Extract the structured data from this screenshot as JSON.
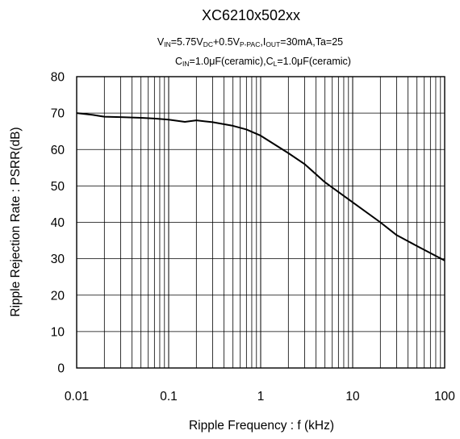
{
  "chart_data": {
    "type": "line",
    "title": "XC6210x502xx",
    "conditions": {
      "line1": [
        {
          "t": "V",
          "sub": false
        },
        {
          "t": "IN",
          "sub": true
        },
        {
          "t": "=5.75V",
          "sub": false
        },
        {
          "t": "DC",
          "sub": true
        },
        {
          "t": "+0.5V",
          "sub": false
        },
        {
          "t": "P-PAC",
          "sub": true
        },
        {
          "t": ",I",
          "sub": false
        },
        {
          "t": "OUT",
          "sub": true
        },
        {
          "t": "=30mA,Ta=25",
          "sub": false
        }
      ],
      "line2": [
        {
          "t": "C",
          "sub": false
        },
        {
          "t": "IN",
          "sub": true
        },
        {
          "t": "=1.0μF(ceramic),C",
          "sub": false
        },
        {
          "t": "L",
          "sub": true
        },
        {
          "t": "=1.0μF(ceramic)",
          "sub": false
        }
      ]
    },
    "xlabel": "Ripple Frequency : f (kHz)",
    "ylabel": "Ripple Rejection Rate : PSRR(dB)",
    "x_scale": "log",
    "xlim": [
      0.01,
      100
    ],
    "ylim": [
      0,
      80
    ],
    "x_ticks": [
      0.01,
      0.1,
      1,
      10,
      100
    ],
    "x_tick_labels": [
      "0.01",
      "0.1",
      "1",
      "10",
      "100"
    ],
    "y_ticks": [
      0,
      10,
      20,
      30,
      40,
      50,
      60,
      70,
      80
    ],
    "y_tick_labels": [
      "0",
      "10",
      "20",
      "30",
      "40",
      "50",
      "60",
      "70",
      "80"
    ],
    "grid": true,
    "line_color": "#000000",
    "series": [
      {
        "x": [
          0.01,
          0.015,
          0.02,
          0.03,
          0.05,
          0.07,
          0.1,
          0.15,
          0.2,
          0.3,
          0.5,
          0.7,
          1,
          2,
          3,
          5,
          10,
          20,
          30,
          50,
          100
        ],
        "y": [
          70,
          69.5,
          69,
          68.9,
          68.7,
          68.5,
          68.2,
          67.6,
          68,
          67.5,
          66.5,
          65.5,
          63.8,
          59,
          56,
          51,
          45.5,
          40,
          36.5,
          33.5,
          29.5
        ]
      }
    ]
  }
}
